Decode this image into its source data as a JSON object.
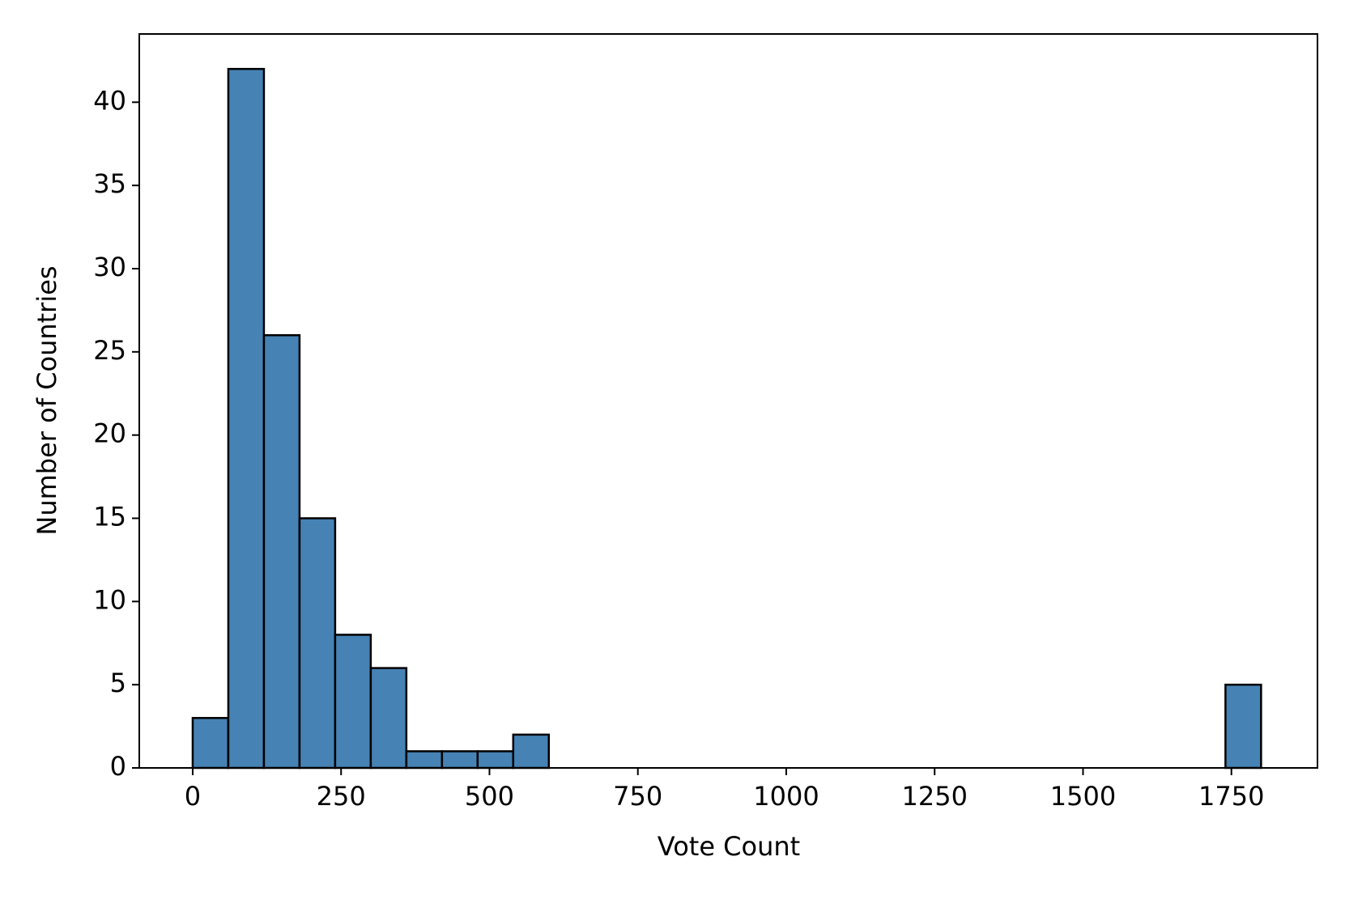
{
  "chart_data": {
    "type": "histogram",
    "xlabel": "Vote Count",
    "ylabel": "Number of Countries",
    "bins": [
      0,
      60,
      120,
      180,
      240,
      300,
      360,
      420,
      480,
      540,
      600,
      660,
      720,
      780,
      840,
      900,
      960,
      1020,
      1080,
      1140,
      1200,
      1260,
      1320,
      1380,
      1440,
      1500,
      1560,
      1620,
      1680,
      1740,
      1800
    ],
    "values": [
      3,
      42,
      26,
      15,
      8,
      6,
      1,
      1,
      1,
      2,
      0,
      0,
      0,
      0,
      0,
      0,
      0,
      0,
      0,
      0,
      0,
      0,
      0,
      0,
      0,
      0,
      0,
      0,
      0,
      5
    ],
    "color": "#4682b4",
    "edgecolor": "#000000",
    "xlim": [
      -90,
      1895
    ],
    "ylim": [
      0,
      44.1
    ],
    "xticks": [
      0,
      250,
      500,
      750,
      1000,
      1250,
      1500,
      1750
    ],
    "yticks": [
      0,
      5,
      10,
      15,
      20,
      25,
      30,
      35,
      40
    ],
    "grid": false
  }
}
